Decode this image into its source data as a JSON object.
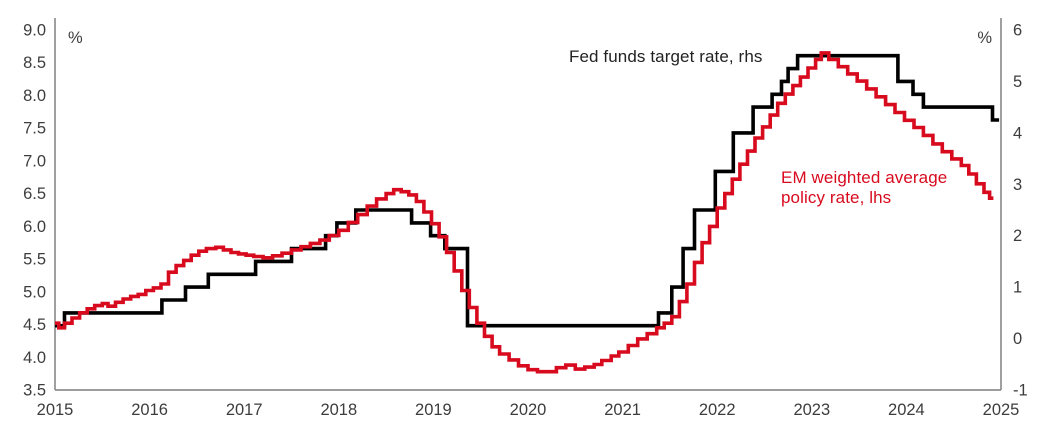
{
  "page": {
    "background": "#ffffff"
  },
  "legend": {
    "fed": {
      "label": "Fed funds target rate, rhs"
    },
    "em": {
      "line1": "EM weighted average",
      "line2": "policy rate, lhs"
    }
  },
  "colors": {
    "fed_line": "#000000",
    "em_line": "#d80a1e",
    "axis_line": "#8f8f8f",
    "tick_text": "#3d3d3d"
  },
  "chart_data": {
    "type": "line",
    "title": "",
    "grid": false,
    "legend_position": "inline-annotations",
    "left_axis": {
      "unit_label": "%",
      "range": [
        3.5,
        9.0
      ],
      "ticks": [
        "9.0",
        "8.5",
        "8.0",
        "7.5",
        "7.0",
        "6.5",
        "6.0",
        "5.5",
        "5.0",
        "4.5",
        "4.0",
        "3.5"
      ]
    },
    "right_axis": {
      "unit_label": "%",
      "range": [
        -1,
        6
      ],
      "ticks": [
        "6",
        "5",
        "4",
        "3",
        "2",
        "1",
        "0",
        "-1"
      ]
    },
    "x_axis": {
      "range": [
        2015,
        2025
      ],
      "ticks": [
        "2015",
        "2016",
        "2017",
        "2018",
        "2019",
        "2020",
        "2021",
        "2022",
        "2023",
        "2024",
        "2025"
      ]
    },
    "series": [
      {
        "name": "Fed funds target rate, rhs",
        "axis": "right",
        "color": "#000000",
        "line_style": "step",
        "end_x": 2024.98,
        "points": [
          [
            2015.0,
            0.25
          ],
          [
            2015.1,
            0.5
          ],
          [
            2016.13,
            0.75
          ],
          [
            2016.38,
            1.0
          ],
          [
            2016.62,
            1.25
          ],
          [
            2017.12,
            1.5
          ],
          [
            2017.5,
            1.75
          ],
          [
            2017.86,
            2.0
          ],
          [
            2017.98,
            2.25
          ],
          [
            2018.18,
            2.5
          ],
          [
            2018.77,
            2.25
          ],
          [
            2018.97,
            2.0
          ],
          [
            2019.12,
            1.75
          ],
          [
            2019.36,
            0.25
          ],
          [
            2021.38,
            0.5
          ],
          [
            2021.52,
            1.0
          ],
          [
            2021.64,
            1.75
          ],
          [
            2021.76,
            2.5
          ],
          [
            2021.98,
            3.25
          ],
          [
            2022.17,
            4.0
          ],
          [
            2022.38,
            4.5
          ],
          [
            2022.58,
            4.75
          ],
          [
            2022.68,
            5.0
          ],
          [
            2022.75,
            5.25
          ],
          [
            2022.85,
            5.5
          ],
          [
            2023.91,
            5.0
          ],
          [
            2024.07,
            4.75
          ],
          [
            2024.18,
            4.5
          ],
          [
            2024.91,
            4.25
          ]
        ]
      },
      {
        "name": "EM weighted average policy rate, lhs",
        "axis": "left",
        "color": "#d80a1e",
        "line_style": "step",
        "end_x": 2024.92,
        "points": [
          [
            2015.0,
            4.52
          ],
          [
            2015.04,
            4.45
          ],
          [
            2015.1,
            4.52
          ],
          [
            2015.18,
            4.6
          ],
          [
            2015.26,
            4.68
          ],
          [
            2015.34,
            4.74
          ],
          [
            2015.42,
            4.79
          ],
          [
            2015.5,
            4.82
          ],
          [
            2015.56,
            4.78
          ],
          [
            2015.64,
            4.84
          ],
          [
            2015.72,
            4.89
          ],
          [
            2015.8,
            4.93
          ],
          [
            2015.88,
            4.96
          ],
          [
            2015.96,
            5.02
          ],
          [
            2016.04,
            5.06
          ],
          [
            2016.12,
            5.12
          ],
          [
            2016.2,
            5.3
          ],
          [
            2016.28,
            5.4
          ],
          [
            2016.36,
            5.48
          ],
          [
            2016.44,
            5.56
          ],
          [
            2016.52,
            5.62
          ],
          [
            2016.6,
            5.66
          ],
          [
            2016.7,
            5.68
          ],
          [
            2016.78,
            5.64
          ],
          [
            2016.86,
            5.6
          ],
          [
            2016.94,
            5.58
          ],
          [
            2017.02,
            5.56
          ],
          [
            2017.1,
            5.54
          ],
          [
            2017.2,
            5.52
          ],
          [
            2017.3,
            5.55
          ],
          [
            2017.4,
            5.59
          ],
          [
            2017.5,
            5.64
          ],
          [
            2017.6,
            5.69
          ],
          [
            2017.7,
            5.74
          ],
          [
            2017.8,
            5.79
          ],
          [
            2017.9,
            5.86
          ],
          [
            2018.0,
            5.94
          ],
          [
            2018.1,
            6.06
          ],
          [
            2018.2,
            6.18
          ],
          [
            2018.3,
            6.31
          ],
          [
            2018.4,
            6.42
          ],
          [
            2018.5,
            6.5
          ],
          [
            2018.58,
            6.56
          ],
          [
            2018.66,
            6.53
          ],
          [
            2018.74,
            6.48
          ],
          [
            2018.82,
            6.38
          ],
          [
            2018.9,
            6.22
          ],
          [
            2018.98,
            6.04
          ],
          [
            2019.06,
            5.84
          ],
          [
            2019.14,
            5.6
          ],
          [
            2019.22,
            5.32
          ],
          [
            2019.3,
            5.02
          ],
          [
            2019.38,
            4.76
          ],
          [
            2019.46,
            4.52
          ],
          [
            2019.54,
            4.32
          ],
          [
            2019.62,
            4.16
          ],
          [
            2019.7,
            4.05
          ],
          [
            2019.8,
            3.96
          ],
          [
            2019.9,
            3.87
          ],
          [
            2020.0,
            3.81
          ],
          [
            2020.1,
            3.78
          ],
          [
            2020.22,
            3.78
          ],
          [
            2020.3,
            3.84
          ],
          [
            2020.4,
            3.88
          ],
          [
            2020.5,
            3.82
          ],
          [
            2020.6,
            3.85
          ],
          [
            2020.7,
            3.89
          ],
          [
            2020.78,
            3.95
          ],
          [
            2020.88,
            4.02
          ],
          [
            2020.96,
            4.08
          ],
          [
            2021.06,
            4.18
          ],
          [
            2021.16,
            4.28
          ],
          [
            2021.26,
            4.36
          ],
          [
            2021.36,
            4.45
          ],
          [
            2021.44,
            4.52
          ],
          [
            2021.52,
            4.62
          ],
          [
            2021.6,
            4.85
          ],
          [
            2021.68,
            5.12
          ],
          [
            2021.76,
            5.45
          ],
          [
            2021.84,
            5.75
          ],
          [
            2021.92,
            6.0
          ],
          [
            2022.0,
            6.28
          ],
          [
            2022.08,
            6.5
          ],
          [
            2022.16,
            6.72
          ],
          [
            2022.24,
            6.95
          ],
          [
            2022.32,
            7.15
          ],
          [
            2022.4,
            7.35
          ],
          [
            2022.48,
            7.52
          ],
          [
            2022.56,
            7.7
          ],
          [
            2022.64,
            7.88
          ],
          [
            2022.72,
            8.02
          ],
          [
            2022.8,
            8.15
          ],
          [
            2022.88,
            8.28
          ],
          [
            2022.96,
            8.42
          ],
          [
            2023.04,
            8.55
          ],
          [
            2023.1,
            8.65
          ],
          [
            2023.18,
            8.55
          ],
          [
            2023.28,
            8.44
          ],
          [
            2023.38,
            8.33
          ],
          [
            2023.48,
            8.22
          ],
          [
            2023.58,
            8.1
          ],
          [
            2023.68,
            7.98
          ],
          [
            2023.78,
            7.86
          ],
          [
            2023.88,
            7.74
          ],
          [
            2023.98,
            7.62
          ],
          [
            2024.08,
            7.51
          ],
          [
            2024.18,
            7.39
          ],
          [
            2024.28,
            7.26
          ],
          [
            2024.38,
            7.14
          ],
          [
            2024.48,
            7.03
          ],
          [
            2024.58,
            6.93
          ],
          [
            2024.66,
            6.8
          ],
          [
            2024.74,
            6.65
          ],
          [
            2024.82,
            6.52
          ],
          [
            2024.88,
            6.43
          ]
        ]
      }
    ]
  }
}
